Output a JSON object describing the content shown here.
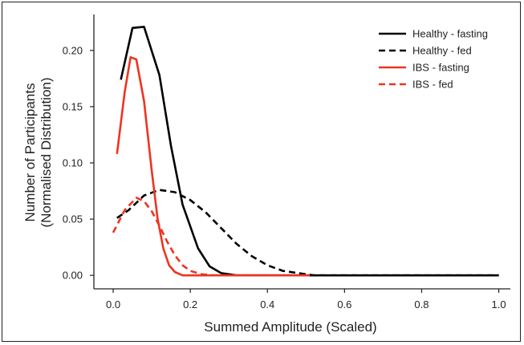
{
  "chart_data": {
    "type": "line",
    "title": "",
    "xlabel": "Summed Amplitude (Scaled)",
    "ylabel_lines": [
      "Number of Participants",
      "(Normalised Distribution)"
    ],
    "xlim": [
      -0.05,
      1.03
    ],
    "ylim": [
      -0.012,
      0.232
    ],
    "xticks": [
      0.0,
      0.2,
      0.4,
      0.6,
      0.8,
      1.0
    ],
    "xtick_labels": [
      "0.0",
      "0.2",
      "0.4",
      "0.6",
      "0.8",
      "1.0"
    ],
    "yticks": [
      0.0,
      0.05,
      0.1,
      0.15,
      0.2
    ],
    "ytick_labels": [
      "0.00",
      "0.05",
      "0.10",
      "0.15",
      "0.20"
    ],
    "grid": false,
    "legend_position": "top-right",
    "series": [
      {
        "name": "Healthy - fasting",
        "color": "#000000",
        "dash": "solid",
        "points": [
          [
            0.02,
            0.174
          ],
          [
            0.05,
            0.22
          ],
          [
            0.08,
            0.221
          ],
          [
            0.12,
            0.178
          ],
          [
            0.15,
            0.115
          ],
          [
            0.18,
            0.063
          ],
          [
            0.22,
            0.024
          ],
          [
            0.25,
            0.008
          ],
          [
            0.28,
            0.002
          ],
          [
            0.32,
            0.0
          ],
          [
            1.0,
            0.0
          ]
        ]
      },
      {
        "name": "Healthy - fed",
        "color": "#000000",
        "dash": "dashed",
        "points": [
          [
            0.01,
            0.051
          ],
          [
            0.04,
            0.058
          ],
          [
            0.08,
            0.071
          ],
          [
            0.12,
            0.076
          ],
          [
            0.16,
            0.074
          ],
          [
            0.2,
            0.067
          ],
          [
            0.24,
            0.056
          ],
          [
            0.28,
            0.042
          ],
          [
            0.32,
            0.028
          ],
          [
            0.36,
            0.017
          ],
          [
            0.4,
            0.009
          ],
          [
            0.44,
            0.004
          ],
          [
            0.48,
            0.002
          ],
          [
            0.52,
            0.0
          ],
          [
            1.0,
            0.0
          ]
        ]
      },
      {
        "name": "IBS - fasting",
        "color": "#ee3322",
        "dash": "solid",
        "points": [
          [
            0.01,
            0.108
          ],
          [
            0.03,
            0.163
          ],
          [
            0.045,
            0.194
          ],
          [
            0.06,
            0.192
          ],
          [
            0.08,
            0.155
          ],
          [
            0.1,
            0.093
          ],
          [
            0.115,
            0.051
          ],
          [
            0.13,
            0.024
          ],
          [
            0.145,
            0.009
          ],
          [
            0.16,
            0.003
          ],
          [
            0.18,
            0.0
          ],
          [
            0.51,
            0.0
          ]
        ]
      },
      {
        "name": "IBS - fed",
        "color": "#ee3322",
        "dash": "dashed",
        "points": [
          [
            0.0,
            0.038
          ],
          [
            0.03,
            0.058
          ],
          [
            0.06,
            0.069
          ],
          [
            0.08,
            0.066
          ],
          [
            0.1,
            0.057
          ],
          [
            0.12,
            0.044
          ],
          [
            0.14,
            0.03
          ],
          [
            0.16,
            0.018
          ],
          [
            0.18,
            0.009
          ],
          [
            0.2,
            0.004
          ],
          [
            0.23,
            0.001
          ],
          [
            0.26,
            0.0
          ],
          [
            0.4,
            0.0
          ]
        ]
      }
    ]
  }
}
